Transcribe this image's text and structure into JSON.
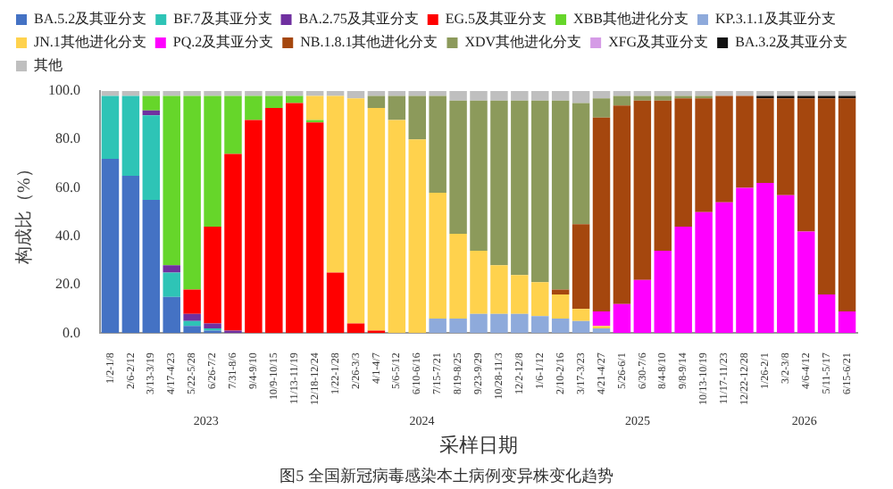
{
  "chart_data": {
    "type": "bar",
    "stacked": true,
    "xlabel": "采样日期",
    "ylabel": "构成比（%）",
    "categories": [
      "1/2-1/8",
      "2/6-2/12",
      "3/13-3/19",
      "4/17-4/23",
      "5/22-5/28",
      "6/26-7/2",
      "7/31-8/6",
      "9/4-9/10",
      "10/9-10/15",
      "11/13-11/19",
      "12/18-12/24",
      "1/22-1/28",
      "2/26-3/3",
      "4/1-4/7",
      "5/6-5/12",
      "6/10-6/16",
      "7/15-7/21",
      "8/19-8/25",
      "9/23-9/29",
      "10/28-11/3",
      "12/2-12/8",
      "1/6-1/12",
      "2/10-2/16",
      "3/17-3/23",
      "4/21-4/27",
      "5/26-6/1",
      "6/30-7/6",
      "8/4-8/10",
      "9/8-9/14",
      "10/13-10/19",
      "11/17-11/23",
      "12/22-12/28",
      "1/26-2/1",
      "3/2-3/8",
      "4/6-4/12",
      "5/11-5/17",
      "6/15-6/21"
    ],
    "series": [
      {
        "name": "BA.5.2及其亚分支",
        "color": "#4472c4",
        "values": [
          72,
          65,
          55,
          15,
          3,
          1,
          0,
          0,
          0,
          0,
          0,
          0,
          0,
          0,
          0,
          0,
          0,
          0,
          0,
          0,
          0,
          0,
          0,
          0,
          0,
          0,
          0,
          0,
          0,
          0,
          0,
          0,
          0,
          0,
          0,
          0,
          0
        ]
      },
      {
        "name": "BF.7及其亚分支",
        "color": "#2ec4b6",
        "values": [
          26,
          33,
          35,
          10,
          2,
          1,
          0,
          0,
          0,
          0,
          0,
          0,
          0,
          0,
          0,
          0,
          0,
          0,
          0,
          0,
          0,
          0,
          0,
          0,
          0,
          0,
          0,
          0,
          0,
          0,
          0,
          0,
          0,
          0,
          0,
          0,
          0
        ]
      },
      {
        "name": "BA.2.75及其亚分支",
        "color": "#7030a0",
        "values": [
          0,
          0,
          2,
          3,
          3,
          2,
          1,
          0,
          0,
          0,
          0,
          0,
          0,
          0,
          0,
          0,
          0,
          0,
          0,
          0,
          0,
          0,
          0,
          0,
          0,
          0,
          0,
          0,
          0,
          0,
          0,
          0,
          0,
          0,
          0,
          0,
          0
        ]
      },
      {
        "name": "EG.5及其亚分支",
        "color": "#ff0000",
        "values": [
          0,
          0,
          0,
          0,
          10,
          40,
          73,
          88,
          93,
          95,
          87,
          25,
          4,
          1,
          0,
          0,
          0,
          0,
          0,
          0,
          0,
          0,
          0,
          0,
          0,
          0,
          0,
          0,
          0,
          0,
          0,
          0,
          0,
          0,
          0,
          0,
          0
        ]
      },
      {
        "name": "XBB其他进化分支",
        "color": "#66d62a",
        "values": [
          0,
          0,
          6,
          70,
          80,
          54,
          24,
          10,
          5,
          3,
          1,
          0,
          0,
          0,
          0,
          0,
          0,
          0,
          0,
          0,
          0,
          0,
          0,
          0,
          0,
          0,
          0,
          0,
          0,
          0,
          0,
          0,
          0,
          0,
          0,
          0,
          0
        ]
      },
      {
        "name": "KP.3.1.1及其亚分支",
        "color": "#8eaadb",
        "values": [
          0,
          0,
          0,
          0,
          0,
          0,
          0,
          0,
          0,
          0,
          0,
          0,
          0,
          0,
          0,
          0,
          6,
          6,
          8,
          8,
          8,
          7,
          6,
          5,
          2,
          0,
          0,
          0,
          0,
          0,
          0,
          0,
          0,
          0,
          0,
          0,
          0
        ]
      },
      {
        "name": "JN.1其他进化分支",
        "color": "#ffd24d",
        "values": [
          0,
          0,
          0,
          0,
          0,
          0,
          0,
          0,
          0,
          0,
          10,
          73,
          93,
          92,
          88,
          80,
          52,
          35,
          26,
          20,
          16,
          14,
          10,
          5,
          1,
          0,
          0,
          0,
          0,
          0,
          0,
          0,
          0,
          0,
          0,
          0,
          0
        ]
      },
      {
        "name": "PQ.2及其亚分支",
        "color": "#ff00ff",
        "values": [
          0,
          0,
          0,
          0,
          0,
          0,
          0,
          0,
          0,
          0,
          0,
          0,
          0,
          0,
          0,
          0,
          0,
          0,
          0,
          0,
          0,
          0,
          0,
          0,
          6,
          12,
          22,
          34,
          44,
          50,
          54,
          60,
          62,
          57,
          42,
          16,
          9
        ]
      },
      {
        "name": "NB.1.8.1其他进化分支",
        "color": "#a5470e",
        "values": [
          0,
          0,
          0,
          0,
          0,
          0,
          0,
          0,
          0,
          0,
          0,
          0,
          0,
          0,
          0,
          0,
          0,
          0,
          0,
          0,
          0,
          0,
          2,
          35,
          80,
          82,
          74,
          62,
          53,
          47,
          44,
          38,
          35,
          40,
          55,
          81,
          88
        ]
      },
      {
        "name": "XDV其他进化分支",
        "color": "#8c9a5b",
        "values": [
          0,
          0,
          0,
          0,
          0,
          0,
          0,
          0,
          0,
          0,
          0,
          0,
          0,
          5,
          10,
          18,
          40,
          55,
          62,
          68,
          72,
          75,
          78,
          50,
          8,
          4,
          2,
          2,
          1,
          1,
          0,
          0,
          0,
          0,
          0,
          0,
          0
        ]
      },
      {
        "name": "XFG及其亚分支",
        "color": "#d59be6",
        "values": [
          0,
          0,
          0,
          0,
          0,
          0,
          0,
          0,
          0,
          0,
          0,
          0,
          0,
          0,
          0,
          0,
          0,
          0,
          0,
          0,
          0,
          0,
          0,
          0,
          0,
          0,
          0,
          0,
          0,
          0,
          0,
          0,
          0,
          0,
          0,
          0,
          0
        ]
      },
      {
        "name": "BA.3.2及其亚分支",
        "color": "#111111",
        "values": [
          0,
          0,
          0,
          0,
          0,
          0,
          0,
          0,
          0,
          0,
          0,
          0,
          0,
          0,
          0,
          0,
          0,
          0,
          0,
          0,
          0,
          0,
          0,
          0,
          0,
          0,
          0,
          0,
          0,
          0,
          0,
          0,
          1,
          1,
          1,
          1,
          1
        ]
      },
      {
        "name": "其他",
        "color": "#bfbfbf",
        "values": [
          2,
          2,
          2,
          2,
          2,
          2,
          2,
          2,
          2,
          2,
          2,
          2,
          3,
          2,
          2,
          2,
          2,
          4,
          4,
          4,
          4,
          4,
          4,
          5,
          3,
          2,
          2,
          2,
          2,
          2,
          2,
          2,
          2,
          2,
          2,
          2,
          2
        ]
      }
    ],
    "ylim": [
      0,
      100
    ],
    "yticks": [
      {
        "value": 0,
        "label": "0.0"
      },
      {
        "value": 20,
        "label": "20.0"
      },
      {
        "value": 40,
        "label": "40.0"
      },
      {
        "value": 60,
        "label": "60.0"
      },
      {
        "value": 80,
        "label": "80.0"
      },
      {
        "value": 100,
        "label": "100.0"
      }
    ],
    "legend": "top",
    "annotations": [
      "2023",
      "2024",
      "2025",
      "2026",
      "图5 全国新冠病毒感染本土病例变异株变化趋势"
    ]
  }
}
